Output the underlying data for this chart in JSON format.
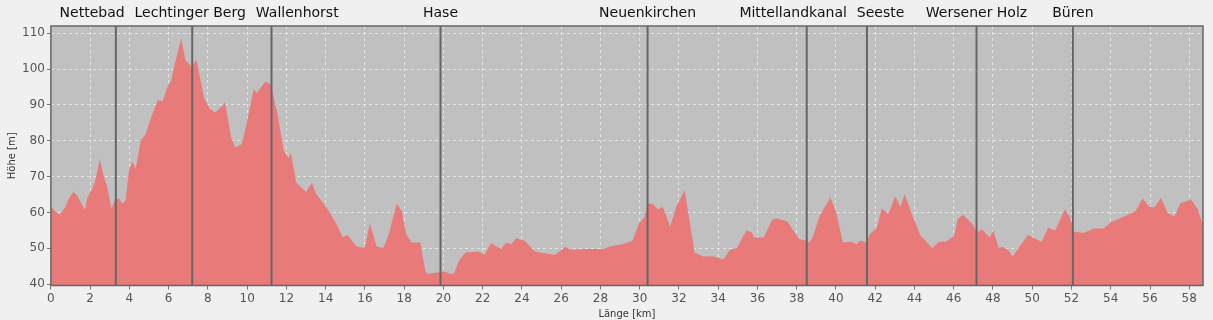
{
  "chart_data": {
    "type": "area",
    "xlabel": "Länge [km]",
    "ylabel": "Höhe [m]",
    "x": [
      0,
      0.2,
      0.46,
      0.72,
      0.89,
      1.15,
      1.32,
      1.66,
      1.75,
      1.84,
      2.09,
      2.26,
      2.49,
      2.69,
      2.86,
      3.09,
      3.24,
      3.47,
      3.64,
      3.81,
      3.98,
      4.15,
      4.32,
      4.58,
      4.84,
      5.1,
      5.44,
      5.7,
      5.95,
      6.13,
      6.3,
      6.64,
      6.85,
      7.16,
      7.42,
      7.81,
      8.1,
      8.36,
      8.78,
      8.87,
      9.18,
      9.39,
      9.73,
      9.98,
      10.33,
      10.5,
      10.93,
      11.19,
      11.53,
      11.87,
      12.13,
      12.22,
      12.51,
      12.99,
      13.3,
      13.5,
      14.1,
      14.53,
      14.87,
      15.13,
      15.56,
      15.99,
      16.25,
      16.59,
      16.94,
      17.19,
      17.62,
      17.88,
      18.1,
      18.39,
      18.82,
      19.08,
      19.17,
      20.09,
      20.32,
      20.54,
      20.8,
      21.14,
      21.82,
      22.08,
      22.42,
      22.94,
      23.2,
      23.45,
      23.71,
      24.14,
      24.66,
      25.17,
      25.68,
      26.2,
      26.54,
      27.23,
      28.09,
      28.69,
      29.11,
      29.63,
      29.97,
      30.23,
      30.4,
      30.66,
      30.92,
      31.18,
      31.55,
      31.86,
      32.29,
      32.8,
      33.23,
      33.74,
      34.26,
      34.6,
      34.95,
      35.43,
      35.72,
      35.81,
      36.32,
      36.75,
      37.01,
      37.52,
      38.12,
      38.52,
      38.64,
      38.81,
      39.16,
      39.41,
      39.72,
      40.01,
      40.35,
      40.78,
      41.04,
      41.21,
      41.56,
      41.73,
      42.07,
      42.33,
      42.68,
      43.02,
      43.28,
      43.5,
      43.88,
      44.31,
      44.91,
      45.25,
      45.6,
      46.02,
      46.2,
      46.46,
      46.96,
      47.21,
      47.44,
      47.81,
      48.02,
      48.29,
      48.5,
      48.76,
      49.01,
      49.36,
      49.79,
      50.47,
      50.81,
      51.16,
      51.67,
      51.93,
      52.1,
      52.61,
      53.13,
      53.64,
      53.98,
      54.67,
      55.27,
      55.62,
      55.96,
      56.22,
      56.56,
      56.9,
      57.24,
      57.55,
      58.1,
      58.44,
      58.69
    ],
    "values": [
      61.6,
      60.4,
      59.4,
      61.4,
      63.6,
      65.8,
      64.9,
      61.4,
      60.9,
      63.9,
      66.5,
      68.8,
      74.9,
      70.2,
      67.3,
      60.9,
      63.4,
      63.9,
      62.4,
      63.4,
      71.7,
      74.2,
      72.2,
      80.1,
      82.0,
      86.4,
      91.3,
      91.0,
      95.3,
      96.7,
      101.2,
      108.5,
      102.6,
      100.7,
      102.6,
      91.8,
      88.9,
      87.9,
      89.9,
      90.9,
      81.0,
      78.1,
      79.1,
      85.0,
      94.3,
      93.3,
      96.5,
      95.8,
      87.9,
      77.1,
      75.1,
      76.6,
      68.3,
      65.8,
      68.3,
      65.3,
      60.9,
      57.0,
      53.1,
      53.7,
      50.6,
      50.1,
      57.0,
      50.6,
      50.1,
      53.5,
      62.4,
      60.4,
      54.0,
      51.6,
      51.6,
      43.7,
      42.9,
      43.5,
      42.9,
      42.9,
      46.7,
      48.8,
      49.1,
      48.1,
      51.4,
      49.8,
      51.6,
      51.1,
      52.8,
      52.1,
      49.1,
      48.6,
      48.1,
      50.4,
      49.6,
      49.8,
      49.8,
      50.8,
      51.1,
      52.1,
      57.0,
      58.5,
      62.4,
      62.4,
      60.9,
      61.6,
      56.0,
      61.6,
      66.1,
      48.8,
      47.7,
      47.8,
      46.9,
      49.6,
      50.1,
      55.0,
      54.5,
      53.0,
      53.0,
      58.0,
      58.3,
      57.5,
      52.6,
      52.1,
      51.6,
      53.0,
      58.9,
      61.4,
      64.1,
      59.9,
      51.6,
      51.8,
      51.1,
      52.1,
      51.6,
      54.0,
      55.5,
      61.1,
      59.6,
      64.5,
      61.6,
      65.1,
      59.4,
      53.5,
      50.1,
      51.8,
      51.8,
      53.5,
      58.0,
      59.4,
      56.7,
      54.5,
      55.3,
      53.0,
      55.0,
      50.1,
      50.4,
      49.6,
      47.7,
      50.6,
      53.7,
      51.8,
      55.7,
      55.0,
      60.9,
      58.5,
      54.7,
      54.3,
      55.5,
      55.5,
      57.2,
      58.9,
      60.4,
      63.9,
      61.6,
      61.4,
      64.0,
      59.9,
      58.9,
      62.6,
      63.6,
      60.9,
      56.5
    ],
    "color": "#e87a7a",
    "xlim": [
      0,
      58.7
    ],
    "xticks": [
      0,
      2,
      4,
      6,
      8,
      10,
      12,
      14,
      16,
      18,
      20,
      22,
      24,
      26,
      28,
      30,
      32,
      34,
      36,
      38,
      40,
      42,
      44,
      46,
      48,
      50,
      52,
      54,
      56,
      58
    ],
    "ylim": [
      39.6,
      112
    ],
    "yticks": [
      40,
      50,
      60,
      70,
      80,
      90,
      100,
      110
    ],
    "grid": true,
    "legend": false,
    "marker": "none",
    "ref_lines": [
      {
        "axis": "x",
        "value": 3.31,
        "label": "Nettebad",
        "color": "#666666"
      },
      {
        "axis": "x",
        "value": 7.2,
        "label": "Lechtinger Berg",
        "color": "#666666"
      },
      {
        "axis": "x",
        "value": 11.24,
        "label": "Wallenhorst",
        "color": "#666666"
      },
      {
        "axis": "x",
        "value": 19.85,
        "label": "Hase",
        "color": "#666666"
      },
      {
        "axis": "x",
        "value": 30.4,
        "label": "Neuenkirchen",
        "color": "#666666"
      },
      {
        "axis": "x",
        "value": 38.51,
        "label": "Mittellandkanal",
        "color": "#666666"
      },
      {
        "axis": "x",
        "value": 41.58,
        "label": "Seeste",
        "color": "#666666"
      },
      {
        "axis": "x",
        "value": 47.16,
        "label": "Wersener Holz",
        "color": "#666666"
      },
      {
        "axis": "x",
        "value": 52.07,
        "label": "Büren",
        "color": "#666666"
      }
    ]
  }
}
